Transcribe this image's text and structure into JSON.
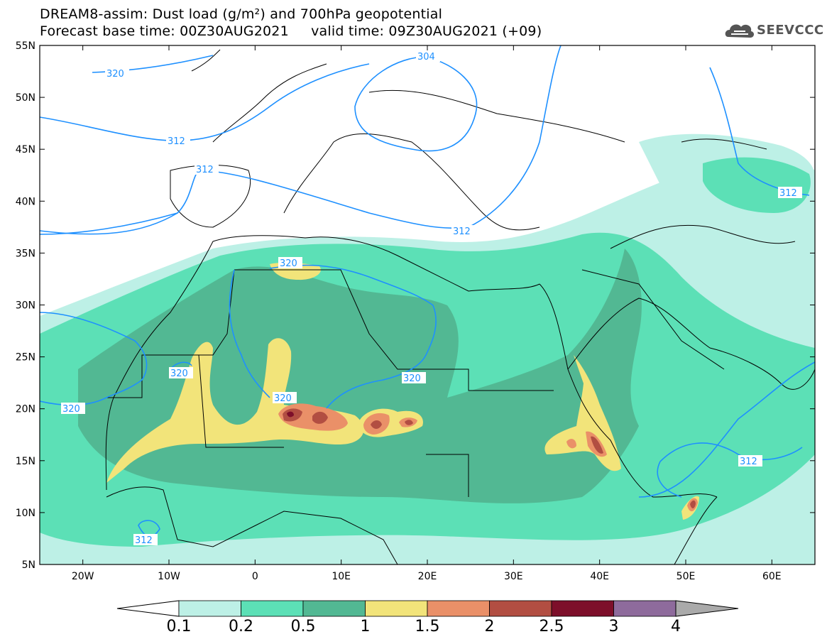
{
  "title": {
    "line1": "DREAM8-assim: Dust load (g/m²) and 700hPa geopotential",
    "line2": "Forecast base time: 00Z30AUG2021     valid time: 09Z30AUG2021 (+09)"
  },
  "logo": {
    "text": "SEEVCCC",
    "icon": "cloud-logo-icon"
  },
  "map": {
    "lon_range": [
      -25,
      65
    ],
    "lat_range": [
      5,
      55
    ],
    "lat_ticks": [
      "55N",
      "50N",
      "45N",
      "40N",
      "35N",
      "30N",
      "25N",
      "20N",
      "15N",
      "10N",
      "5N"
    ],
    "lon_ticks": [
      "20W",
      "10W",
      "0",
      "10E",
      "20E",
      "30E",
      "40E",
      "50E",
      "60E"
    ],
    "contour_labels": [
      "320",
      "304",
      "312",
      "312",
      "312",
      "320",
      "320",
      "320",
      "320",
      "320",
      "312",
      "312",
      "312"
    ],
    "geopotential_color": "#1e90ff"
  },
  "colorbar": {
    "labels": [
      "0.1",
      "0.2",
      "0.5",
      "1",
      "1.5",
      "2",
      "2.5",
      "3",
      "4"
    ],
    "colors": [
      "#bdf0e6",
      "#5ce0b6",
      "#52b893",
      "#f2e47a",
      "#ea9068",
      "#b24e42",
      "#7d0f2a",
      "#8e6b9c"
    ],
    "under_color": "#ffffff",
    "over_color": "#aaaaaa"
  }
}
